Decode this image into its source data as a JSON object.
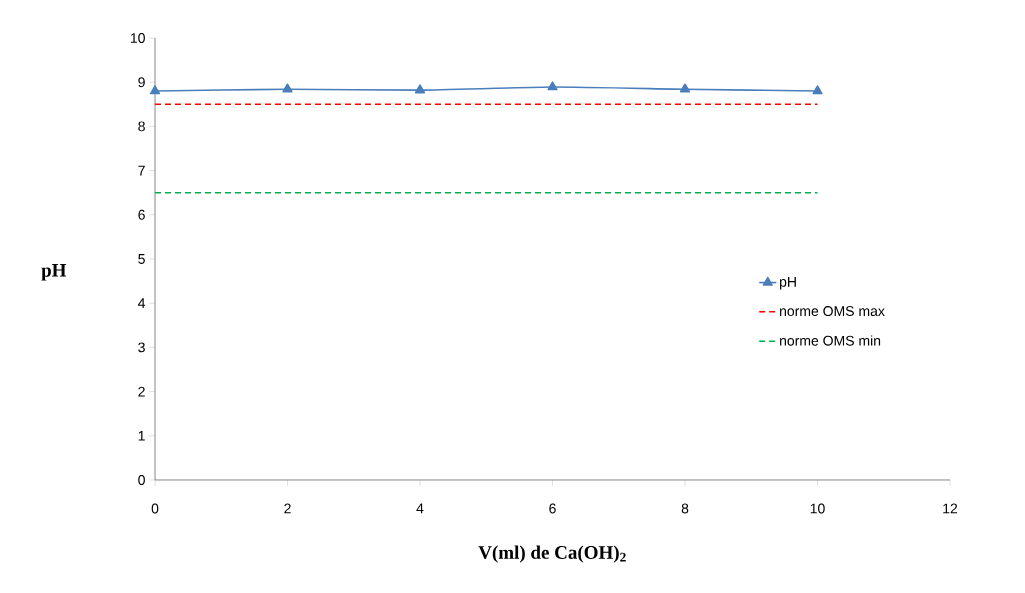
{
  "chart_data": {
    "type": "line",
    "xlabel": "V(ml) de Ca(OH)$_{2}$",
    "ylabel": "pH",
    "xlim": [
      0,
      12
    ],
    "xticks": [
      0,
      2,
      4,
      6,
      8,
      10,
      12
    ],
    "ylim": [
      0,
      10
    ],
    "yticks": [
      0,
      1,
      2,
      3,
      4,
      5,
      6,
      7,
      8,
      9,
      10
    ],
    "grid": false,
    "legend": "right",
    "series": [
      {
        "name": "pH",
        "color": "#4a7ebb",
        "x": [
          0,
          2,
          4,
          6,
          8,
          10
        ],
        "values": [
          8.8,
          8.84,
          8.82,
          8.89,
          8.84,
          8.8
        ],
        "marker": "triangle",
        "line_style": "solid"
      },
      {
        "name": "norme OMS max",
        "color": "#ff0000",
        "x": [
          0,
          10
        ],
        "values": [
          8.5,
          8.5
        ],
        "marker": "none",
        "line_style": "dashed"
      },
      {
        "name": "norme OMS min",
        "color": "#00b050",
        "x": [
          0,
          10
        ],
        "values": [
          6.5,
          6.5
        ],
        "marker": "none",
        "line_style": "dashed"
      }
    ]
  }
}
